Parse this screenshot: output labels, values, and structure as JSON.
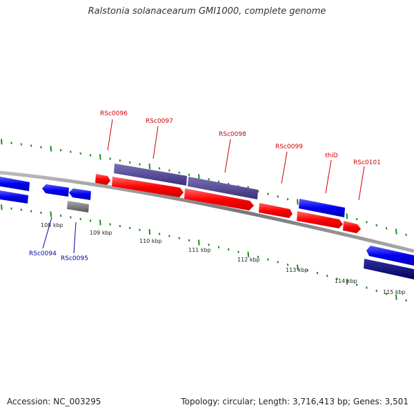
{
  "title": "Ralstonia solanacearum GMI1000, complete genome",
  "footer": {
    "accession": "Accession: NC_003295",
    "genome_info": "Topology: circular; Length: 3,716,413 bp; Genes: 3,501"
  },
  "colors": {
    "forward_cds": "#ff0000",
    "reverse_cds": "#0000ee",
    "reverse_cds_dark": "#000080",
    "operon_purple": "#4a3f8c",
    "gray_feature": "#777777",
    "backbone": "#888888",
    "ticks": "#1a8c1a",
    "label_red": "#cc0000",
    "label_blue": "#0000aa"
  },
  "scale_labels": [
    "108 kbp",
    "109 kbp",
    "110 kbp",
    "111 kbp",
    "112 kbp",
    "113 kbp",
    "114 kbp",
    "115 kbp"
  ],
  "gene_labels": {
    "top": [
      "RSc0096",
      "RSc0097",
      "RSc0098",
      "RSc0099",
      "thiD",
      "RSc0101"
    ],
    "bottom": [
      "RSc0094",
      "RSc0095"
    ]
  }
}
